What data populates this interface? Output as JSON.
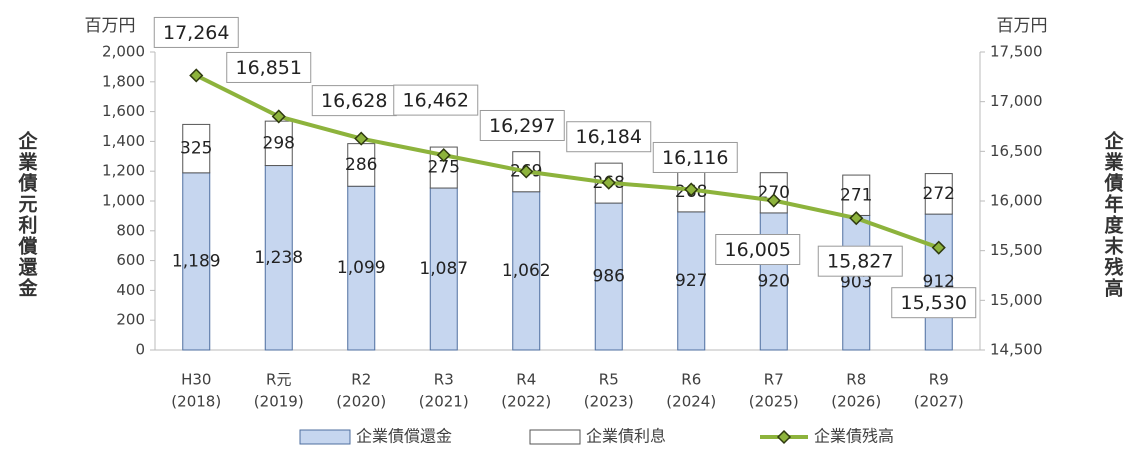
{
  "chart_data": {
    "type": "bar",
    "categories": [
      [
        "H30",
        "(2018)"
      ],
      [
        "R元",
        "(2019)"
      ],
      [
        "R2",
        "(2020)"
      ],
      [
        "R3",
        "(2021)"
      ],
      [
        "R4",
        "(2022)"
      ],
      [
        "R5",
        "(2023)"
      ],
      [
        "R6",
        "(2024)"
      ],
      [
        "R7",
        "(2025)"
      ],
      [
        "R8",
        "(2026)"
      ],
      [
        "R9",
        "(2027)"
      ]
    ],
    "y_label": "企業債元利償還金",
    "y2_label": "企業債年度末残高",
    "y_unit": "百万円",
    "y2_unit": "百万円",
    "ylim": [
      0,
      2000
    ],
    "yticks": [
      0,
      200,
      400,
      600,
      800,
      {
        "value": 1000,
        "label": "1,000"
      },
      {
        "value": 1200,
        "label": "1,200"
      },
      {
        "value": 1400,
        "label": "1,400"
      },
      {
        "value": 1600,
        "label": "1,600"
      },
      {
        "value": 1800,
        "label": "1,800"
      },
      {
        "value": 2000,
        "label": "2,000"
      }
    ],
    "y2lim": [
      14500,
      17500
    ],
    "y2ticks": [
      {
        "value": 14500,
        "label": "14,500"
      },
      {
        "value": 15000,
        "label": "15,000"
      },
      {
        "value": 15500,
        "label": "15,500"
      },
      {
        "value": 16000,
        "label": "16,000"
      },
      {
        "value": 16500,
        "label": "16,500"
      },
      {
        "value": 17000,
        "label": "17,000"
      },
      {
        "value": 17500,
        "label": "17,500"
      }
    ],
    "series": [
      {
        "name": "企業債償還金",
        "color": "#c6d6ef",
        "stack": true,
        "values": [
          1189,
          1238,
          1099,
          1087,
          1062,
          986,
          927,
          920,
          903,
          912
        ],
        "value_labels": [
          "1,189",
          "1,238",
          "1,099",
          "1,087",
          "1,062",
          "986",
          "927",
          "920",
          "903",
          "912"
        ]
      },
      {
        "name": "企業債利息",
        "color": "#ffffff",
        "stack": true,
        "values": [
          325,
          298,
          286,
          275,
          269,
          268,
          268,
          270,
          271,
          272
        ]
      },
      {
        "name": "企業債残高",
        "color": "#8db33c",
        "type": "line",
        "axis": "y2",
        "values": [
          17264,
          16851,
          16628,
          16462,
          16297,
          16184,
          16116,
          16005,
          15827,
          15530
        ],
        "value_labels": [
          "17,264",
          "16,851",
          "16,628",
          "16,462",
          "16,297",
          "16,184",
          "16,116",
          "16,005",
          "15,827",
          "15,530"
        ]
      }
    ]
  }
}
